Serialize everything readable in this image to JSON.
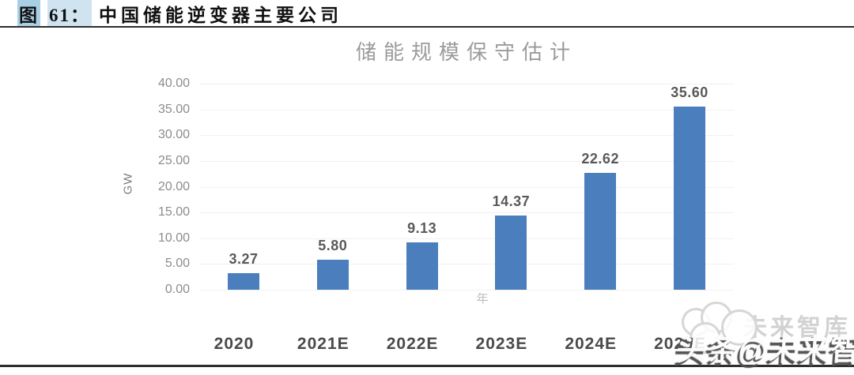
{
  "header": {
    "figure_label": "图",
    "figure_number": "61：",
    "title": "中国储能逆变器主要公司"
  },
  "chart_data": {
    "type": "bar",
    "title": "储能规模保守估计",
    "categories": [
      "2020",
      "2021E",
      "2022E",
      "2023E",
      "2024E",
      "2025E"
    ],
    "values": [
      3.27,
      5.8,
      9.13,
      14.37,
      22.62,
      35.6
    ],
    "data_labels": [
      "3.27",
      "5.80",
      "9.13",
      "14.37",
      "22.62",
      "35.60"
    ],
    "xlabel": "年",
    "ylabel": "GW",
    "ylim": [
      0,
      40
    ],
    "ytick_step": 5,
    "yticks": [
      "40.00",
      "35.00",
      "30.00",
      "25.00",
      "20.00",
      "15.00",
      "10.00",
      "5.00",
      "0.00"
    ],
    "grid": true,
    "legend": "none",
    "bar_color": "#4b7ebd"
  },
  "watermark": {
    "text": "头条@未来智库",
    "ghost_text": "未来智库"
  },
  "colors": {
    "figure_label_highlight": "#a9cfe5",
    "figure_number_highlight": "#cfe4f0",
    "chart_title_gray": "#9b9b9b",
    "bar_blue": "#4b7ebd"
  }
}
